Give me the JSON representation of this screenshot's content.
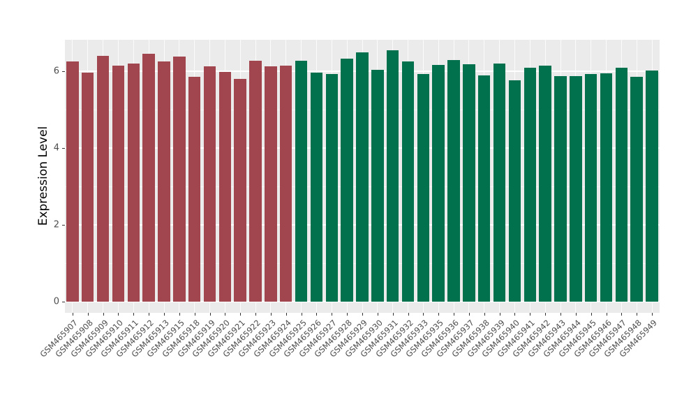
{
  "figure": {
    "background": "#FFFFFF",
    "panel_background": "#EBEBEB",
    "grid_color": "#FFFFFF"
  },
  "chart_data": {
    "type": "bar",
    "title": "",
    "xlabel": "",
    "ylabel": "Expression Level",
    "ylim": [
      0,
      6.9
    ],
    "yticks": [
      0,
      2,
      4,
      6
    ],
    "yticks_minor": [
      1,
      3,
      5
    ],
    "grid": true,
    "legend_position": "none",
    "group_split_index": 15,
    "group_colors": [
      "#A1454E",
      "#00714C"
    ],
    "categories": [
      "GSM465907",
      "GSM465908",
      "GSM465909",
      "GSM465910",
      "GSM465911",
      "GSM465912",
      "GSM465913",
      "GSM465915",
      "GSM465918",
      "GSM465919",
      "GSM465920",
      "GSM465921",
      "GSM465922",
      "GSM465923",
      "GSM465924",
      "GSM465925",
      "GSM465926",
      "GSM465927",
      "GSM465928",
      "GSM465929",
      "GSM465930",
      "GSM465931",
      "GSM465932",
      "GSM465933",
      "GSM465935",
      "GSM465936",
      "GSM465937",
      "GSM465938",
      "GSM465939",
      "GSM465940",
      "GSM465941",
      "GSM465942",
      "GSM465943",
      "GSM465944",
      "GSM465945",
      "GSM465946",
      "GSM465947",
      "GSM465948",
      "GSM465949"
    ],
    "values": [
      6.25,
      5.97,
      6.4,
      6.15,
      6.2,
      6.45,
      6.25,
      6.38,
      5.86,
      6.12,
      5.98,
      5.8,
      6.27,
      6.12,
      6.15,
      6.27,
      5.96,
      5.93,
      6.33,
      6.5,
      6.04,
      6.55,
      6.25,
      5.92,
      6.17,
      6.29,
      6.19,
      5.9,
      6.2,
      5.77,
      6.1,
      6.15,
      5.88,
      5.88,
      5.92,
      5.95,
      6.1,
      5.85,
      6.02
    ]
  }
}
